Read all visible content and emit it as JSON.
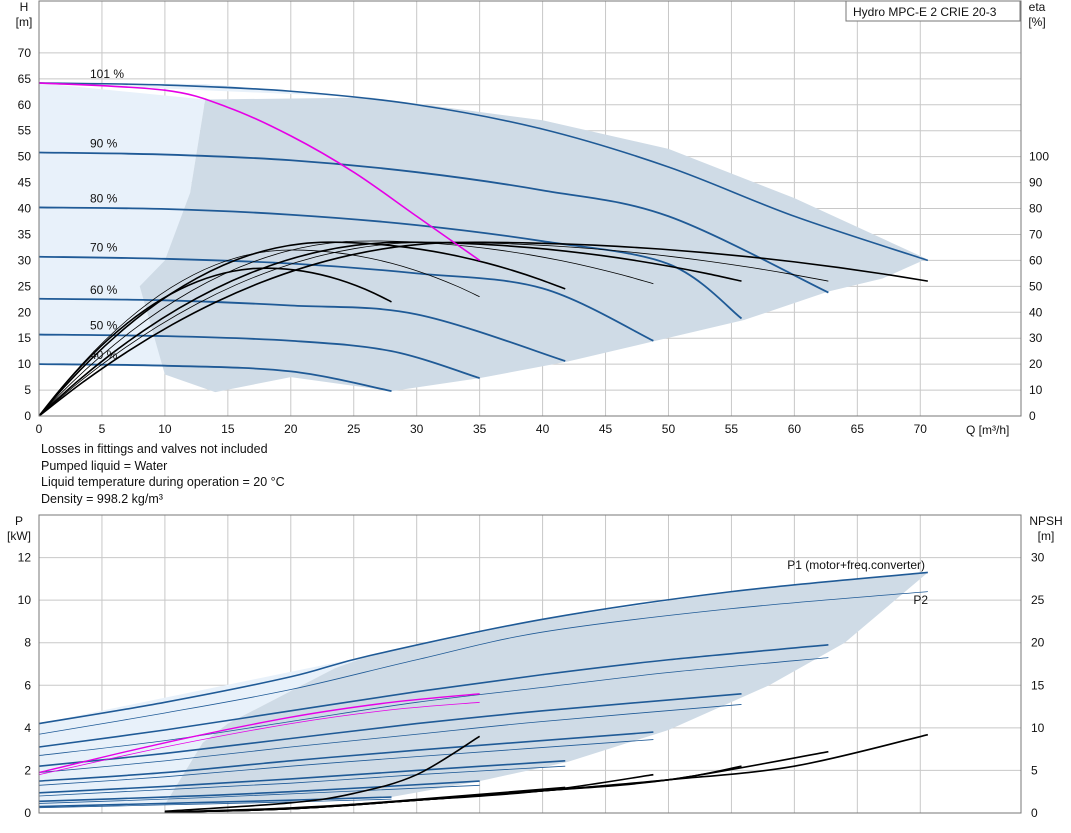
{
  "notes": [
    "Losses in fittings and valves not included",
    "Pumped liquid = Water",
    "Liquid temperature during operation = 20 °C",
    "Density = 998.2 kg/m³"
  ],
  "chart_data": [
    {
      "type": "line",
      "title": "Hydro MPC-E 2 CRIE 20-3",
      "x_axis": {
        "label_top": "Q [m³/h]",
        "range": [
          0,
          78
        ],
        "ticks": [
          0,
          5,
          10,
          15,
          20,
          25,
          30,
          35,
          40,
          45,
          50,
          55,
          60,
          65,
          70
        ]
      },
      "y_left": {
        "label_top": "H",
        "unit": "[m]",
        "range": [
          0,
          80
        ],
        "ticks": [
          0,
          5,
          10,
          15,
          20,
          25,
          30,
          35,
          40,
          45,
          50,
          55,
          60,
          65,
          70
        ]
      },
      "y_right": {
        "label_top": "eta",
        "unit": "[%]",
        "range": [
          0,
          160
        ],
        "ticks": [
          0,
          10,
          20,
          30,
          40,
          50,
          60,
          70,
          80,
          90,
          100
        ]
      },
      "grid": true,
      "speed_labels": [
        {
          "text": "101 %",
          "h": 64.2
        },
        {
          "text": "90 %",
          "h": 50.8
        },
        {
          "text": "80 %",
          "h": 40.2
        },
        {
          "text": "70 %",
          "h": 30.7
        },
        {
          "text": "60 %",
          "h": 22.6
        },
        {
          "text": "50 %",
          "h": 15.7
        },
        {
          "text": "40 %",
          "h": 10.0
        }
      ],
      "envelope": [
        [
          8,
          25
        ],
        [
          10,
          30
        ],
        [
          12,
          43
        ],
        [
          13.2,
          61
        ],
        [
          26.3,
          61.4
        ],
        [
          40,
          57
        ],
        [
          50,
          51.5
        ],
        [
          60,
          42
        ],
        [
          70.5,
          30.3
        ],
        [
          67,
          26.5
        ],
        [
          62.7,
          24
        ],
        [
          56,
          18.5
        ],
        [
          49,
          14.5
        ],
        [
          42,
          10.5
        ],
        [
          35,
          7.3
        ],
        [
          28,
          4.8
        ],
        [
          20,
          7.5
        ],
        [
          14,
          4.6
        ],
        [
          10,
          8
        ]
      ],
      "light_region": [
        [
          0,
          64.2
        ],
        [
          13.2,
          64
        ],
        [
          26.3,
          61.4
        ],
        [
          0,
          64.2
        ],
        [
          0,
          10
        ],
        [
          10,
          9.5
        ],
        [
          12,
          43
        ],
        [
          13.2,
          61
        ]
      ],
      "qh_curves": [
        {
          "speed": "101 %",
          "points": [
            [
              0,
              64.2
            ],
            [
              10,
              63.8
            ],
            [
              20,
              62.6
            ],
            [
              30,
              60
            ],
            [
              40,
              55.3
            ],
            [
              50,
              48
            ],
            [
              60,
              38.5
            ],
            [
              70.6,
              30
            ]
          ]
        },
        {
          "speed": "90 %",
          "points": [
            [
              0,
              50.8
            ],
            [
              10,
              50.4
            ],
            [
              20,
              49.3
            ],
            [
              30,
              47
            ],
            [
              40,
              43.5
            ],
            [
              50,
              38.5
            ],
            [
              62.7,
              23.8
            ]
          ]
        },
        {
          "speed": "80 %",
          "points": [
            [
              0,
              40.2
            ],
            [
              10,
              39.9
            ],
            [
              20,
              38.8
            ],
            [
              30,
              36.8
            ],
            [
              40,
              33.7
            ],
            [
              50,
              29.3
            ],
            [
              55.8,
              18.8
            ]
          ]
        },
        {
          "speed": "70 %",
          "points": [
            [
              0,
              30.7
            ],
            [
              10,
              30.3
            ],
            [
              20,
              29.4
            ],
            [
              30,
              27.5
            ],
            [
              40,
              24.6
            ],
            [
              48.8,
              14.5
            ]
          ]
        },
        {
          "speed": "60 %",
          "points": [
            [
              0,
              22.6
            ],
            [
              10,
              22.3
            ],
            [
              20,
              21.3
            ],
            [
              30,
              19.6
            ],
            [
              41.8,
              10.6
            ]
          ]
        },
        {
          "speed": "50 %",
          "points": [
            [
              0,
              15.7
            ],
            [
              10,
              15.4
            ],
            [
              20,
              14.5
            ],
            [
              28,
              12.5
            ],
            [
              35,
              7.3
            ]
          ]
        },
        {
          "speed": "40 %",
          "points": [
            [
              0,
              10.0
            ],
            [
              10,
              9.7
            ],
            [
              20,
              8.6
            ],
            [
              28,
              4.8
            ]
          ]
        }
      ],
      "pump_limit_curve": {
        "color": "#e600e6",
        "points": [
          [
            0,
            64.2
          ],
          [
            10,
            62.8
          ],
          [
            15,
            59.5
          ],
          [
            20,
            54
          ],
          [
            25,
            47
          ],
          [
            30,
            38.5
          ],
          [
            35,
            30
          ]
        ]
      },
      "efficiency_curves": [
        {
          "peak_q": 18,
          "end_q": 28,
          "peak_eta": 57,
          "end_eta": 44
        },
        {
          "peak_q": 20,
          "end_q": 35,
          "peak_eta": 64,
          "end_eta": 46
        },
        {
          "peak_q": 23,
          "end_q": 41.8,
          "peak_eta": 67,
          "end_eta": 49
        },
        {
          "peak_q": 26,
          "end_q": 48.8,
          "peak_eta": 67.5,
          "end_eta": 51
        },
        {
          "peak_q": 29,
          "end_q": 55.8,
          "peak_eta": 67,
          "end_eta": 52
        },
        {
          "peak_q": 31,
          "end_q": 62.7,
          "peak_eta": 67,
          "end_eta": 52
        },
        {
          "peak_q": 34,
          "end_q": 70.6,
          "peak_eta": 67,
          "end_eta": 52
        }
      ]
    },
    {
      "type": "line",
      "x_axis": {
        "range": [
          0,
          78
        ],
        "ticks": [
          0,
          5,
          10,
          15,
          20,
          25,
          30,
          35,
          40,
          45,
          50,
          55,
          60,
          65,
          70
        ]
      },
      "y_left": {
        "label_top": "P",
        "unit": "[kW]",
        "range": [
          0,
          14
        ],
        "ticks": [
          0,
          2,
          4,
          6,
          8,
          10,
          12
        ]
      },
      "y_right": {
        "label_top": "NPSH",
        "unit": "[m]",
        "range": [
          0,
          35
        ],
        "ticks": [
          0,
          5,
          10,
          15,
          20,
          25,
          30
        ]
      },
      "grid": true,
      "legend": [
        {
          "name": "P1 (motor+freq.converter)",
          "color": "#1f5a96"
        },
        {
          "name": "P2",
          "color": "#1f5a96"
        }
      ],
      "p1_curves": [
        {
          "points": [
            [
              0,
              4.2
            ],
            [
              10,
              5.2
            ],
            [
              20,
              6.4
            ],
            [
              26.3,
              7.4
            ],
            [
              40,
              9.1
            ],
            [
              55,
              10.4
            ],
            [
              70.6,
              11.3
            ]
          ]
        },
        {
          "points": [
            [
              0,
              3.1
            ],
            [
              10,
              3.9
            ],
            [
              20,
              4.8
            ],
            [
              30,
              5.7
            ],
            [
              40,
              6.5
            ],
            [
              50,
              7.2
            ],
            [
              62.7,
              7.9
            ]
          ]
        },
        {
          "points": [
            [
              0,
              2.2
            ],
            [
              10,
              2.8
            ],
            [
              20,
              3.5
            ],
            [
              30,
              4.2
            ],
            [
              40,
              4.8
            ],
            [
              55.8,
              5.6
            ]
          ]
        },
        {
          "points": [
            [
              0,
              1.5
            ],
            [
              10,
              1.9
            ],
            [
              20,
              2.45
            ],
            [
              30,
              2.95
            ],
            [
              48.8,
              3.8
            ]
          ]
        },
        {
          "points": [
            [
              0,
              0.95
            ],
            [
              10,
              1.25
            ],
            [
              20,
              1.6
            ],
            [
              30,
              2.0
            ],
            [
              41.8,
              2.45
            ]
          ]
        },
        {
          "points": [
            [
              0,
              0.55
            ],
            [
              10,
              0.75
            ],
            [
              20,
              1.0
            ],
            [
              35,
              1.5
            ]
          ]
        },
        {
          "points": [
            [
              0,
              0.3
            ],
            [
              10,
              0.45
            ],
            [
              20,
              0.6
            ],
            [
              28,
              0.75
            ]
          ]
        }
      ],
      "p2_curves": [
        {
          "points": [
            [
              0,
              3.7
            ],
            [
              10,
              4.7
            ],
            [
              20,
              5.8
            ],
            [
              30,
              7.2
            ],
            [
              40,
              8.5
            ],
            [
              55,
              9.6
            ],
            [
              70.6,
              10.4
            ]
          ]
        },
        {
          "points": [
            [
              0,
              2.7
            ],
            [
              10,
              3.4
            ],
            [
              20,
              4.3
            ],
            [
              30,
              5.2
            ],
            [
              40,
              5.9
            ],
            [
              50,
              6.6
            ],
            [
              62.7,
              7.3
            ]
          ]
        },
        {
          "points": [
            [
              0,
              1.9
            ],
            [
              10,
              2.45
            ],
            [
              20,
              3.1
            ],
            [
              30,
              3.7
            ],
            [
              40,
              4.3
            ],
            [
              55.8,
              5.1
            ]
          ]
        },
        {
          "points": [
            [
              0,
              1.3
            ],
            [
              10,
              1.7
            ],
            [
              20,
              2.2
            ],
            [
              30,
              2.65
            ],
            [
              48.8,
              3.45
            ]
          ]
        },
        {
          "points": [
            [
              0,
              0.8
            ],
            [
              10,
              1.1
            ],
            [
              20,
              1.4
            ],
            [
              30,
              1.8
            ],
            [
              41.8,
              2.2
            ]
          ]
        },
        {
          "points": [
            [
              0,
              0.45
            ],
            [
              10,
              0.65
            ],
            [
              20,
              0.9
            ],
            [
              35,
              1.3
            ]
          ]
        },
        {
          "points": [
            [
              0,
              0.25
            ],
            [
              10,
              0.38
            ],
            [
              20,
              0.52
            ],
            [
              28,
              0.65
            ]
          ]
        }
      ],
      "pump_limit_p1": {
        "color": "#e600e6",
        "points": [
          [
            0,
            1.9
          ],
          [
            10,
            3.3
          ],
          [
            20,
            4.5
          ],
          [
            28,
            5.2
          ],
          [
            35,
            5.6
          ]
        ]
      },
      "pump_limit_p2": {
        "color": "#e600e6",
        "points": [
          [
            0,
            1.8
          ],
          [
            10,
            3.1
          ],
          [
            20,
            4.2
          ],
          [
            28,
            4.85
          ],
          [
            35,
            5.2
          ]
        ]
      },
      "envelope": [
        [
          10,
          0.4
        ],
        [
          13,
          3.3
        ],
        [
          15,
          4.2
        ],
        [
          23.5,
          6.8
        ],
        [
          26.3,
          7.4
        ],
        [
          40,
          9.1
        ],
        [
          55,
          10.4
        ],
        [
          70.6,
          11.3
        ],
        [
          69,
          10.5
        ],
        [
          64,
          8
        ],
        [
          58,
          6
        ],
        [
          50,
          3.9
        ],
        [
          42,
          2.4
        ],
        [
          35,
          1.5
        ],
        [
          28,
          0.75
        ],
        [
          20,
          0.6
        ]
      ],
      "light_region": [
        [
          0,
          4.2
        ],
        [
          26.3,
          7.4
        ],
        [
          23.5,
          6.8
        ],
        [
          15,
          4.2
        ],
        [
          13,
          3.3
        ],
        [
          10,
          0.4
        ],
        [
          0,
          0.3
        ]
      ],
      "npsh_curves": [
        {
          "points": [
            [
              10,
              0.2
            ],
            [
              20,
              1.2
            ],
            [
              25,
              2.3
            ],
            [
              30,
              4.5
            ],
            [
              35,
              9
            ]
          ]
        },
        {
          "points": [
            [
              10,
              0.1
            ],
            [
              20,
              0.5
            ],
            [
              30,
              1.6
            ],
            [
              41.8,
              3
            ]
          ]
        },
        {
          "points": [
            [
              10,
              0.1
            ],
            [
              20,
              0.6
            ],
            [
              30,
              1.5
            ],
            [
              40,
              2.6
            ],
            [
              48.8,
              4.5
            ]
          ]
        },
        {
          "points": [
            [
              10,
              0.1
            ],
            [
              20,
              0.5
            ],
            [
              30,
              1.5
            ],
            [
              40,
              2.6
            ],
            [
              50,
              3.9
            ],
            [
              55.8,
              5.5
            ]
          ]
        },
        {
          "points": [
            [
              10,
              0.1
            ],
            [
              20,
              0.5
            ],
            [
              30,
              1.5
            ],
            [
              40,
              2.6
            ],
            [
              50,
              3.9
            ],
            [
              62.7,
              7.2
            ]
          ]
        },
        {
          "points": [
            [
              10,
              0.1
            ],
            [
              20,
              0.5
            ],
            [
              30,
              1.5
            ],
            [
              40,
              2.6
            ],
            [
              50,
              3.9
            ],
            [
              60,
              5.5
            ],
            [
              70.6,
              9.2
            ]
          ]
        }
      ]
    }
  ],
  "colors": {
    "grid": "#c8c8c8",
    "curve": "#1f5a96",
    "envelope": "#cfdbe6",
    "light_region": "#e8f1fa",
    "efficiency": "#000000",
    "pink": "#e600e6"
  }
}
